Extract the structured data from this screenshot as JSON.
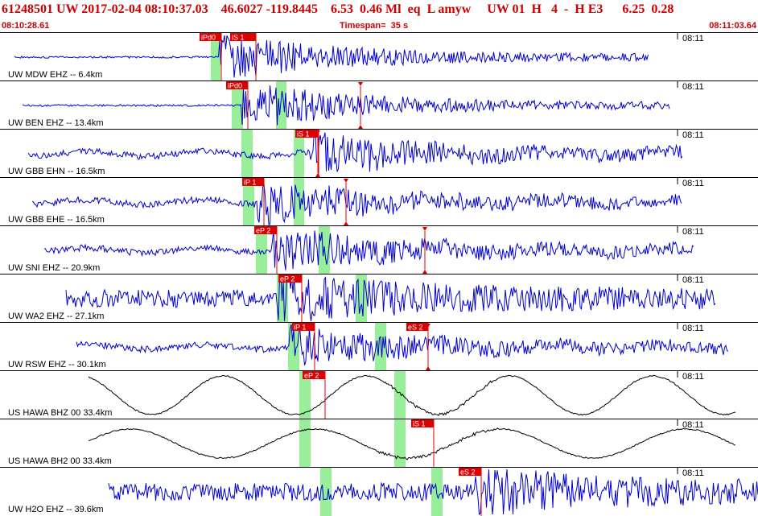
{
  "header": {
    "title": "61248501 UW 2017-02-04 08:10:37.03    46.6027 -119.8445    6.53  0.46 Ml  eq  L amyw     UW 01  H   4  -  H E3      6.25  0.28",
    "start_time": "08:10:28.61",
    "timespan": "Timespan=  35 s",
    "end_time": "08:11:03.64"
  },
  "colors": {
    "trace_blue": "#0000cc",
    "trace_black": "#000000",
    "pick_red": "#dd0000",
    "window_green": "#99ee99",
    "header_red": "#cc0000"
  },
  "tick_label": "08:11",
  "traces": [
    {
      "label": "UW MDW EHZ -- 6.4km",
      "color": "blue",
      "style": "burst",
      "picks": [
        {
          "label": "iPd0"
        },
        {
          "label": "iS 1"
        }
      ]
    },
    {
      "label": "UW BEN EHZ -- 13.4km",
      "color": "blue",
      "style": "burst",
      "picks": [
        {
          "label": "iPd0"
        }
      ]
    },
    {
      "label": "UW GBB EHN -- 16.5km",
      "color": "blue",
      "style": "noisy",
      "picks": [
        {
          "label": "iS 1"
        }
      ]
    },
    {
      "label": "UW GBB EHE -- 16.5km",
      "color": "blue",
      "style": "noisy",
      "picks": [
        {
          "label": "iP 1"
        }
      ]
    },
    {
      "label": "UW SNI EHZ -- 20.9km",
      "color": "blue",
      "style": "noisy",
      "picks": [
        {
          "label": "eP 2"
        }
      ]
    },
    {
      "label": "UW WA2 EHZ -- 27.1km",
      "color": "blue",
      "style": "dense",
      "picks": [
        {
          "label": "eP 2"
        }
      ]
    },
    {
      "label": "UW RSW EHZ -- 30.1km",
      "color": "blue",
      "style": "noisy",
      "picks": [
        {
          "label": "iP 1"
        },
        {
          "label": "eS 2"
        }
      ]
    },
    {
      "label": "US HAWA BHZ 00 33.4km",
      "color": "black",
      "style": "wave",
      "picks": [
        {
          "label": "eP 2"
        }
      ]
    },
    {
      "label": "US HAWA BH2 00 33.4km",
      "color": "black",
      "style": "wave2",
      "picks": [
        {
          "label": "iS 1"
        }
      ]
    },
    {
      "label": "UW H2O EHZ -- 39.6km",
      "color": "blue",
      "style": "dense",
      "picks": [
        {
          "label": "eS 2"
        }
      ]
    }
  ]
}
